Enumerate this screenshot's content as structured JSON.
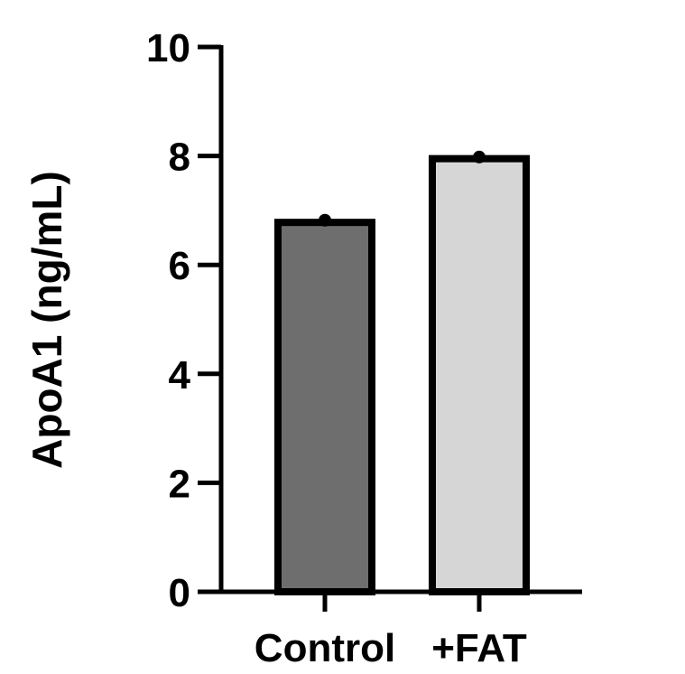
{
  "chart_data": {
    "type": "bar",
    "title": "",
    "xlabel": "",
    "ylabel": "ApoA1 (ng/mL)",
    "ylim": [
      0,
      10
    ],
    "yticks": [
      0,
      2,
      4,
      6,
      8,
      10
    ],
    "grid": false,
    "categories": [
      "Control",
      "+FAT"
    ],
    "values": [
      6.78,
      7.95
    ],
    "points": [
      6.82,
      7.98
    ],
    "colors": [
      "#6e6e6e",
      "#d6d6d6"
    ]
  }
}
